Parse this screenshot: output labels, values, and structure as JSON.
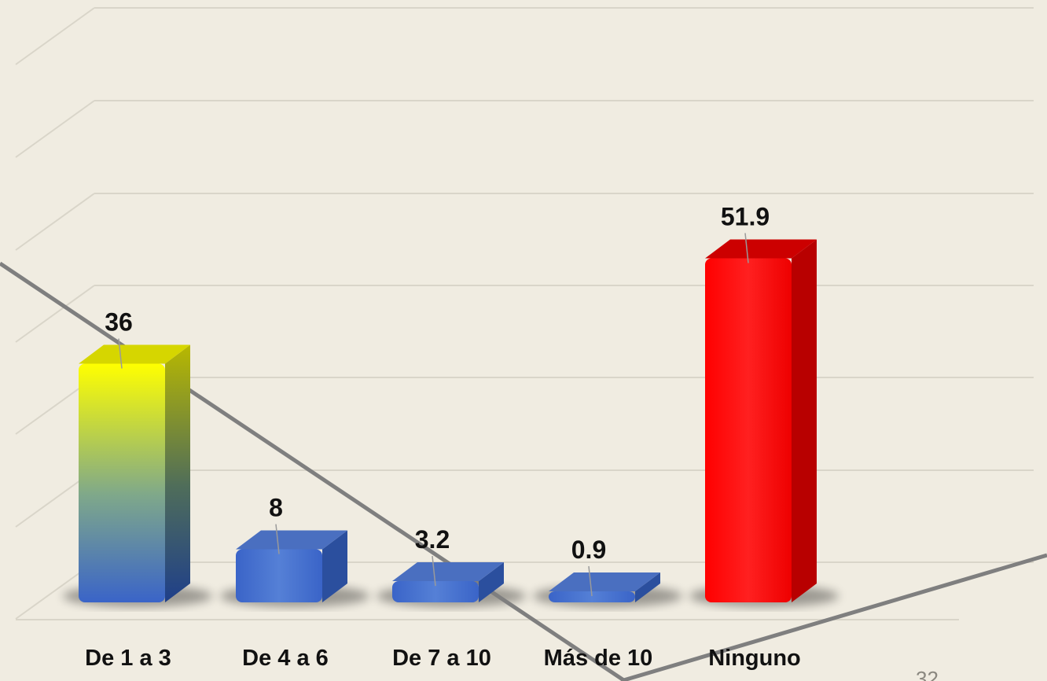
{
  "chart_data": {
    "type": "bar",
    "categories": [
      "De 1 a 3",
      "De 4 a 6",
      "De 7 a 10",
      "Más de 10",
      "Ninguno"
    ],
    "values": [
      36,
      8,
      3.2,
      0.9,
      51.9
    ],
    "value_labels": [
      "36",
      "8",
      "3.2",
      "0.9",
      "51.9"
    ],
    "title": "",
    "xlabel": "",
    "ylabel": "",
    "ylim": [
      0,
      60
    ],
    "grid": true,
    "legend": "none",
    "colors": {
      "De 1 a 3": [
        "#ffff00",
        "#7fa88a",
        "#3a64c8"
      ],
      "De 4 a 6": "#4472c4",
      "De 7 a 10": "#4472c4",
      "Más de 10": "#4472c4",
      "Ninguno": "#ff0000"
    }
  },
  "slide": {
    "page_number": "32"
  },
  "colors": {
    "background": "#f0ece1",
    "gridline": "#d9d5c9",
    "diagonal_line": "#7f7f7f",
    "label_text": "#111111"
  }
}
